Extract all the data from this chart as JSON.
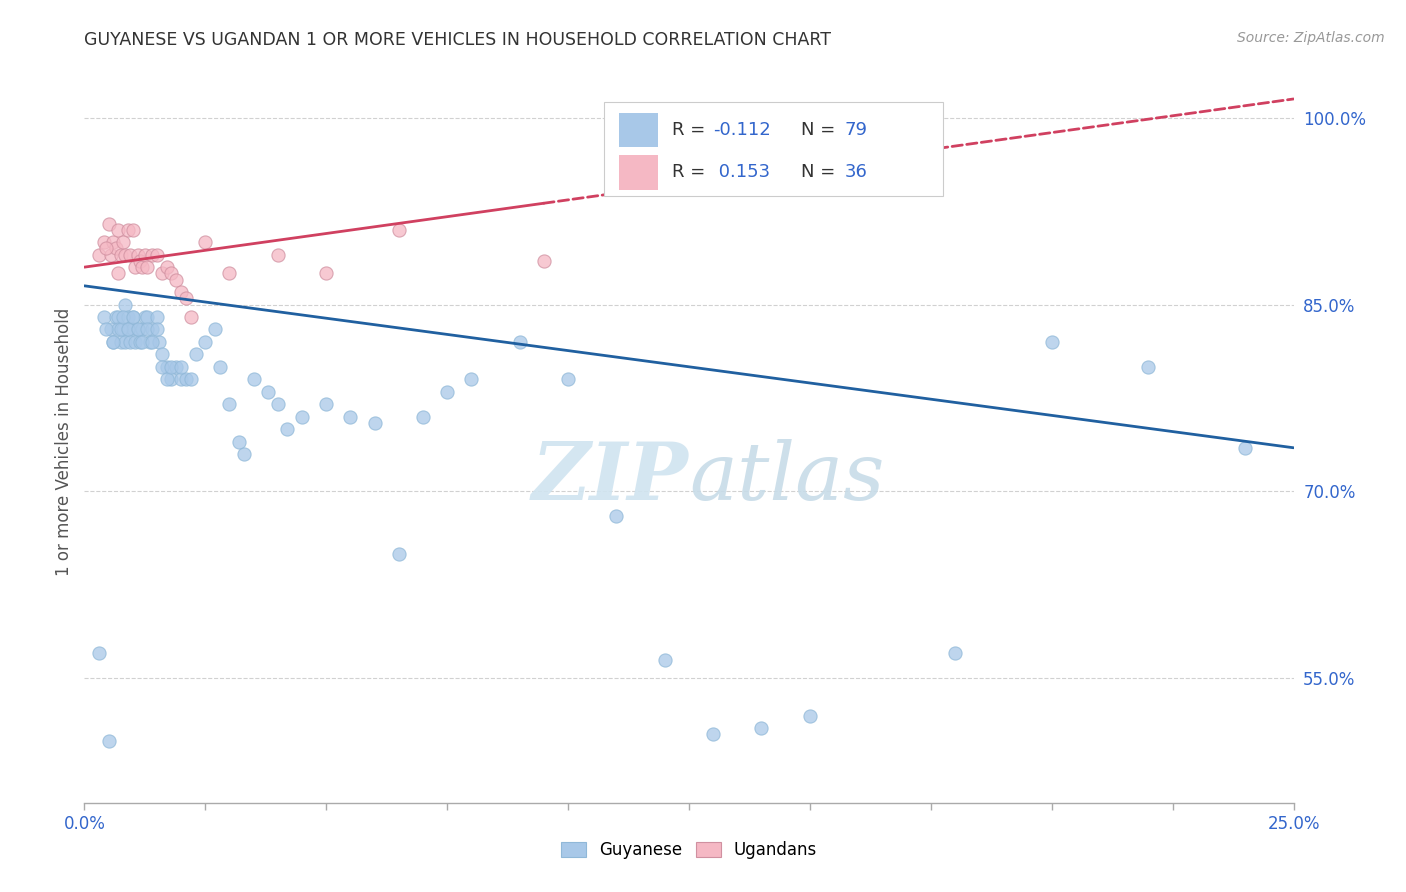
{
  "title": "GUYANESE VS UGANDAN 1 OR MORE VEHICLES IN HOUSEHOLD CORRELATION CHART",
  "source": "Source: ZipAtlas.com",
  "ylabel": "1 or more Vehicles in Household",
  "xlim": [
    0.0,
    25.0
  ],
  "ylim": [
    45.0,
    103.0
  ],
  "yticks": [
    55.0,
    70.0,
    85.0,
    100.0
  ],
  "ytick_labels": [
    "55.0%",
    "70.0%",
    "85.0%",
    "100.0%"
  ],
  "watermark": "ZIPatlas",
  "blue_color": "#a8c8e8",
  "pink_color": "#f5b8c4",
  "blue_line_color": "#2060a0",
  "pink_line_color": "#d04060",
  "grid_color": "#cccccc",
  "title_color": "#333333",
  "axis_label_color": "#3366cc",
  "background_color": "#ffffff",
  "legend_label_x": "Guyanese",
  "legend_label_y": "Ugandans",
  "blue_scatter_x": [
    0.3,
    0.4,
    0.5,
    0.55,
    0.6,
    0.65,
    0.7,
    0.7,
    0.75,
    0.8,
    0.85,
    0.85,
    0.9,
    0.9,
    0.95,
    1.0,
    1.0,
    1.05,
    1.1,
    1.15,
    1.2,
    1.25,
    1.3,
    1.35,
    1.4,
    1.5,
    1.55,
    1.6,
    1.7,
    1.8,
    1.9,
    2.0,
    2.1,
    2.3,
    2.5,
    2.8,
    3.0,
    3.2,
    3.5,
    3.8,
    4.0,
    4.2,
    4.5,
    5.0,
    5.5,
    6.0,
    6.5,
    7.0,
    7.5,
    8.0,
    9.0,
    10.0,
    11.0,
    12.0,
    13.0,
    14.0,
    15.0,
    18.0,
    20.0,
    22.0,
    24.0,
    0.45,
    0.6,
    0.75,
    0.8,
    0.9,
    1.0,
    1.1,
    1.2,
    1.3,
    1.4,
    1.5,
    1.6,
    1.7,
    1.8,
    2.0,
    2.2,
    2.7,
    3.3
  ],
  "blue_scatter_y": [
    57.0,
    84.0,
    50.0,
    83.0,
    82.0,
    84.0,
    84.0,
    83.0,
    82.0,
    83.0,
    85.0,
    82.0,
    84.0,
    83.0,
    82.0,
    84.0,
    83.0,
    82.0,
    83.0,
    82.0,
    83.0,
    84.0,
    84.0,
    82.0,
    83.0,
    84.0,
    82.0,
    81.0,
    80.0,
    79.0,
    80.0,
    79.0,
    79.0,
    81.0,
    82.0,
    80.0,
    77.0,
    74.0,
    79.0,
    78.0,
    77.0,
    75.0,
    76.0,
    77.0,
    76.0,
    75.5,
    65.0,
    76.0,
    78.0,
    79.0,
    82.0,
    79.0,
    68.0,
    56.5,
    50.5,
    51.0,
    52.0,
    57.0,
    82.0,
    80.0,
    73.5,
    83.0,
    82.0,
    83.0,
    84.0,
    83.0,
    84.0,
    83.0,
    82.0,
    83.0,
    82.0,
    83.0,
    80.0,
    79.0,
    80.0,
    80.0,
    79.0,
    83.0,
    73.0
  ],
  "pink_scatter_x": [
    0.3,
    0.4,
    0.5,
    0.55,
    0.6,
    0.65,
    0.7,
    0.75,
    0.8,
    0.85,
    0.9,
    0.95,
    1.0,
    1.05,
    1.1,
    1.15,
    1.2,
    1.25,
    1.3,
    1.4,
    1.5,
    1.6,
    1.7,
    1.8,
    1.9,
    2.0,
    2.1,
    2.2,
    2.5,
    3.0,
    4.0,
    5.0,
    6.5,
    9.5,
    0.45,
    0.7
  ],
  "pink_scatter_y": [
    89.0,
    90.0,
    91.5,
    89.0,
    90.0,
    89.5,
    91.0,
    89.0,
    90.0,
    89.0,
    91.0,
    89.0,
    91.0,
    88.0,
    89.0,
    88.5,
    88.0,
    89.0,
    88.0,
    89.0,
    89.0,
    87.5,
    88.0,
    87.5,
    87.0,
    86.0,
    85.5,
    84.0,
    90.0,
    87.5,
    89.0,
    87.5,
    91.0,
    88.5,
    89.5,
    87.5
  ],
  "blue_trend_x0": 0.0,
  "blue_trend_x1": 25.0,
  "blue_trend_y0": 86.5,
  "blue_trend_y1": 73.5,
  "pink_trend_x0": 0.0,
  "pink_trend_x1": 25.0,
  "pink_trend_y0": 88.0,
  "pink_trend_y1": 101.5,
  "pink_solid_x1": 9.5,
  "xtick_positions": [
    0.0,
    2.5,
    5.0,
    7.5,
    10.0,
    12.5,
    15.0,
    17.5,
    20.0,
    22.5,
    25.0
  ]
}
